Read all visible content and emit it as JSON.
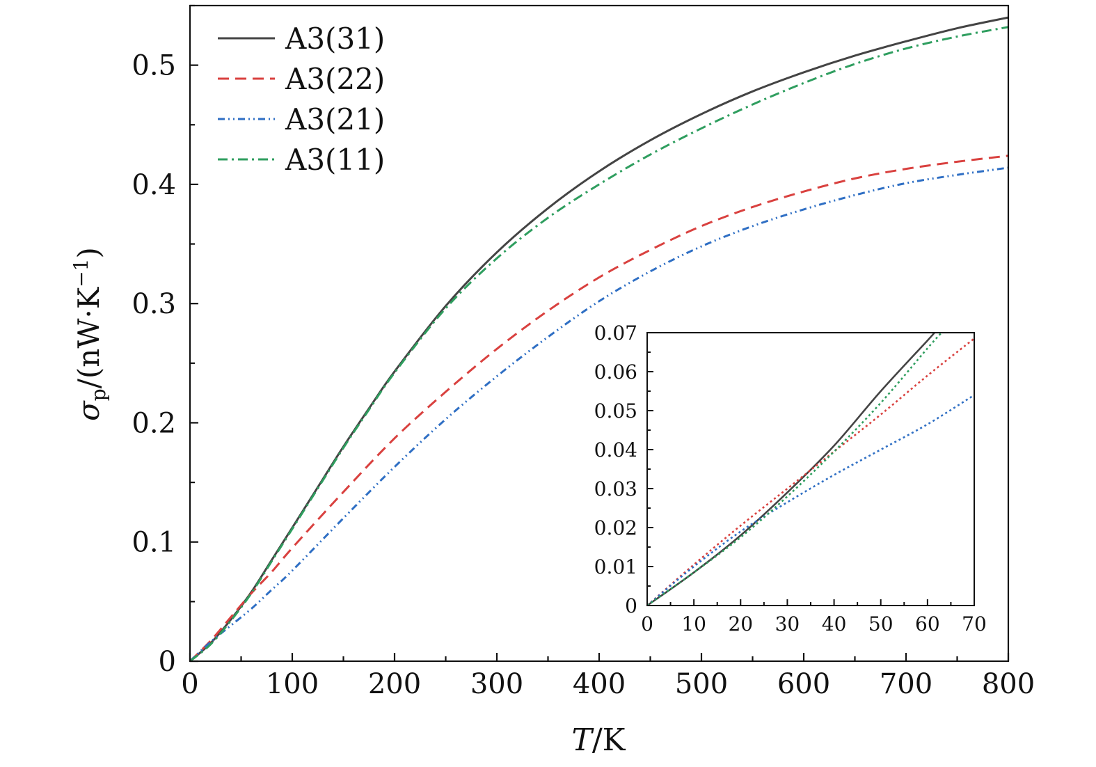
{
  "colors": {
    "A3(31)": "#444444",
    "A3(22)": "#d9413f",
    "A3(21)": "#2f6fc4",
    "A3(11)": "#2f9e5f"
  },
  "chart_data": [
    {
      "type": "line",
      "role": "main",
      "xlabel_italic": "T",
      "xlabel_rest": "/K",
      "ylabel_sym": "σ",
      "ylabel_sub": "p",
      "ylabel_rest": "/(nW·K",
      "ylabel_exp": "−1",
      "ylabel_close": ")",
      "xlim": [
        0,
        800
      ],
      "ylim": [
        0,
        0.55
      ],
      "xticks": [
        0,
        100,
        200,
        300,
        400,
        500,
        600,
        700,
        800
      ],
      "xtick_labels": [
        "0",
        "100",
        "200",
        "300",
        "400",
        "500",
        "600",
        "700",
        "800"
      ],
      "yticks": [
        0,
        0.1,
        0.2,
        0.3,
        0.4,
        0.5
      ],
      "ytick_labels": [
        "0",
        "0.1",
        "0.2",
        "0.3",
        "0.4",
        "0.5"
      ],
      "grid": false,
      "legend_position": "top-left",
      "series": [
        {
          "name": "A3(31)",
          "style": "solid",
          "x": [
            0,
            20,
            40,
            60,
            80,
            100,
            125,
            150,
            175,
            200,
            250,
            300,
            350,
            400,
            450,
            500,
            550,
            600,
            650,
            700,
            750,
            800
          ],
          "y": [
            0,
            0.015,
            0.035,
            0.058,
            0.085,
            0.112,
            0.146,
            0.18,
            0.212,
            0.243,
            0.298,
            0.343,
            0.38,
            0.411,
            0.437,
            0.459,
            0.478,
            0.494,
            0.508,
            0.52,
            0.531,
            0.54
          ]
        },
        {
          "name": "A3(22)",
          "style": "dashed",
          "x": [
            0,
            20,
            40,
            60,
            80,
            100,
            150,
            200,
            250,
            300,
            350,
            400,
            450,
            500,
            550,
            600,
            650,
            700,
            750,
            800
          ],
          "y": [
            0,
            0.017,
            0.037,
            0.057,
            0.075,
            0.095,
            0.142,
            0.187,
            0.226,
            0.262,
            0.294,
            0.322,
            0.345,
            0.365,
            0.381,
            0.394,
            0.405,
            0.413,
            0.419,
            0.424
          ]
        },
        {
          "name": "A3(21)",
          "style": "dashdotdot",
          "x": [
            0,
            20,
            40,
            60,
            80,
            100,
            150,
            200,
            250,
            300,
            350,
            400,
            450,
            500,
            550,
            600,
            650,
            700,
            750,
            800
          ],
          "y": [
            0,
            0.016,
            0.03,
            0.044,
            0.06,
            0.076,
            0.12,
            0.163,
            0.203,
            0.239,
            0.272,
            0.302,
            0.327,
            0.348,
            0.365,
            0.379,
            0.391,
            0.401,
            0.408,
            0.414
          ]
        },
        {
          "name": "A3(11)",
          "style": "dashdot",
          "x": [
            0,
            20,
            40,
            60,
            80,
            100,
            125,
            150,
            175,
            200,
            250,
            300,
            350,
            400,
            450,
            500,
            550,
            600,
            650,
            700,
            750,
            800
          ],
          "y": [
            0,
            0.014,
            0.034,
            0.057,
            0.084,
            0.111,
            0.145,
            0.179,
            0.211,
            0.242,
            0.296,
            0.338,
            0.372,
            0.4,
            0.425,
            0.447,
            0.467,
            0.485,
            0.501,
            0.514,
            0.524,
            0.532
          ]
        }
      ]
    },
    {
      "type": "line",
      "role": "inset",
      "xlim": [
        0,
        70
      ],
      "ylim": [
        0,
        0.07
      ],
      "xticks": [
        0,
        10,
        20,
        30,
        40,
        50,
        60,
        70
      ],
      "xtick_labels": [
        "0",
        "10",
        "20",
        "30",
        "40",
        "50",
        "60",
        "70"
      ],
      "yticks": [
        0,
        0.01,
        0.02,
        0.03,
        0.04,
        0.05,
        0.06,
        0.07
      ],
      "ytick_labels": [
        "0",
        "0.01",
        "0.02",
        "0.03",
        "0.04",
        "0.05",
        "0.06",
        "0.07"
      ],
      "grid": false,
      "series": [
        {
          "name": "A3(31)",
          "style": "solid",
          "x": [
            0,
            10,
            20,
            30,
            40,
            50,
            60,
            61.5
          ],
          "y": [
            0,
            0.0085,
            0.018,
            0.029,
            0.041,
            0.055,
            0.068,
            0.07
          ]
        },
        {
          "name": "A3(22)",
          "style": "dotted",
          "x": [
            0,
            10,
            20,
            30,
            40,
            50,
            60,
            70
          ],
          "y": [
            0,
            0.0105,
            0.0205,
            0.03,
            0.0395,
            0.049,
            0.059,
            0.0685
          ]
        },
        {
          "name": "A3(21)",
          "style": "dotted",
          "x": [
            0,
            10,
            20,
            30,
            40,
            50,
            60,
            70
          ],
          "y": [
            0,
            0.01,
            0.019,
            0.0265,
            0.0335,
            0.04,
            0.0465,
            0.054
          ]
        },
        {
          "name": "A3(11)",
          "style": "dotted",
          "x": [
            0,
            10,
            20,
            30,
            40,
            50,
            60,
            63
          ],
          "y": [
            0,
            0.0085,
            0.0175,
            0.028,
            0.0395,
            0.052,
            0.066,
            0.07
          ]
        }
      ]
    }
  ]
}
